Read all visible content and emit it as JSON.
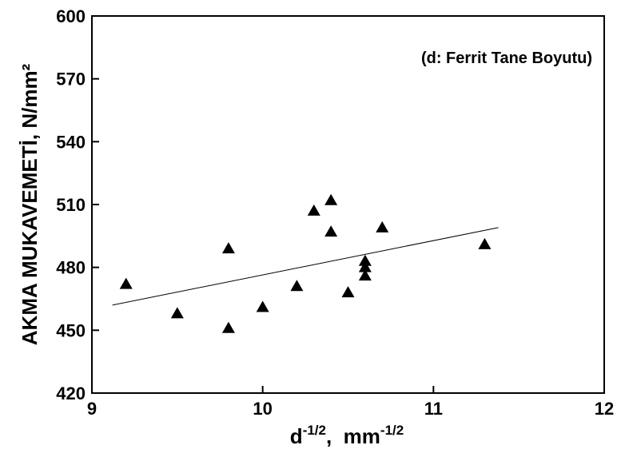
{
  "chart_data": {
    "type": "scatter",
    "annotation": "(d: Ferrit Tane Boyutu)",
    "xlabel": {
      "base": "d",
      "base_sup": "-1/2",
      "sep": ",  ",
      "unit": "mm",
      "unit_sup": "-1/2"
    },
    "ylabel": "AKMA MUKAVEMETİ, N/mm²",
    "xlim": [
      9,
      12
    ],
    "ylim": [
      420,
      600
    ],
    "x_ticks": [
      "9",
      "10",
      "11",
      "12"
    ],
    "y_ticks": [
      "420",
      "450",
      "480",
      "510",
      "540",
      "570",
      "600"
    ],
    "grid": false,
    "marker": "triangle",
    "points": [
      {
        "x": 9.2,
        "y": 472
      },
      {
        "x": 9.5,
        "y": 458
      },
      {
        "x": 9.8,
        "y": 489
      },
      {
        "x": 9.8,
        "y": 451
      },
      {
        "x": 10.0,
        "y": 461
      },
      {
        "x": 10.2,
        "y": 471
      },
      {
        "x": 10.3,
        "y": 507
      },
      {
        "x": 10.4,
        "y": 512
      },
      {
        "x": 10.4,
        "y": 497
      },
      {
        "x": 10.5,
        "y": 468
      },
      {
        "x": 10.6,
        "y": 483
      },
      {
        "x": 10.6,
        "y": 480
      },
      {
        "x": 10.6,
        "y": 476
      },
      {
        "x": 10.7,
        "y": 499
      },
      {
        "x": 11.3,
        "y": 491
      }
    ],
    "trendline": {
      "x": [
        9.12,
        11.38
      ],
      "y": [
        462,
        499
      ]
    }
  }
}
